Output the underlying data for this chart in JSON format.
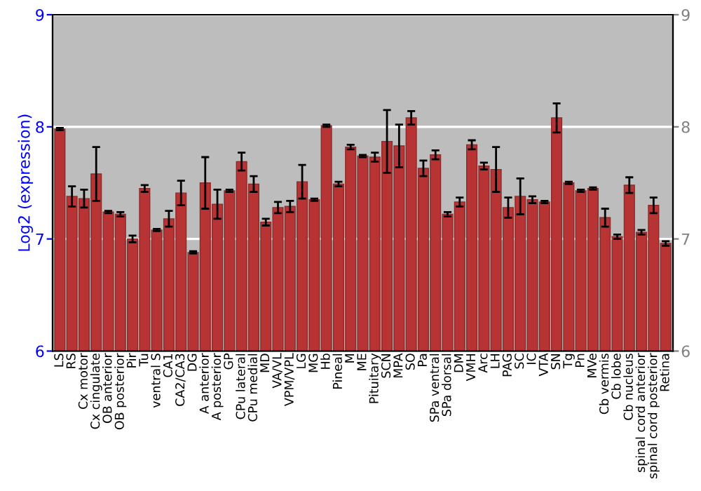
{
  "chart_data": {
    "type": "bar",
    "ylabel": "Log2 (expression)",
    "categories": [
      "LS",
      "RS",
      "Cx motor",
      "Cx cingulate",
      "OB anterior",
      "OB posterior",
      "Pir",
      "Tu",
      "ventral S",
      "CA1",
      "CA2/CA3",
      "DG",
      "A anterior",
      "A posterior",
      "GP",
      "CPu lateral",
      "CPu medial",
      "MD",
      "VA/VL",
      "VPM/VPL",
      "LG",
      "MG",
      "Hb",
      "Pineal",
      "M",
      "ME",
      "Pituitary",
      "SCN",
      "MPA",
      "SO",
      "Pa",
      "SPa ventral",
      "SPa dorsal",
      "DM",
      "VMH",
      "Arc",
      "LH",
      "PAG",
      "SC",
      "IC",
      "VTA",
      "SN",
      "Tg",
      "Pn",
      "MVe",
      "Cb vermis",
      "Cb lobe",
      "Cb nucleus",
      "spinal cord anterior",
      "spinal cord posterior",
      "Retina"
    ],
    "values": [
      7.98,
      7.38,
      7.36,
      7.58,
      7.24,
      7.22,
      7.0,
      7.45,
      7.08,
      7.18,
      7.41,
      6.88,
      7.5,
      7.31,
      7.43,
      7.69,
      7.49,
      7.15,
      7.28,
      7.29,
      7.51,
      7.35,
      8.01,
      7.49,
      7.82,
      7.74,
      7.73,
      7.87,
      7.83,
      8.08,
      7.63,
      7.75,
      7.22,
      7.33,
      7.84,
      7.65,
      7.62,
      7.28,
      7.38,
      7.35,
      7.33,
      8.08,
      7.5,
      7.43,
      7.45,
      7.19,
      7.02,
      7.48,
      7.06,
      7.3,
      6.96
    ],
    "errors": [
      0.01,
      0.09,
      0.08,
      0.24,
      0.01,
      0.02,
      0.03,
      0.03,
      0.01,
      0.07,
      0.11,
      0.01,
      0.23,
      0.13,
      0.01,
      0.08,
      0.07,
      0.03,
      0.05,
      0.05,
      0.15,
      0.01,
      0.01,
      0.02,
      0.02,
      0.01,
      0.04,
      0.28,
      0.19,
      0.06,
      0.07,
      0.04,
      0.02,
      0.04,
      0.04,
      0.03,
      0.2,
      0.09,
      0.16,
      0.03,
      0.01,
      0.13,
      0.01,
      0.01,
      0.01,
      0.08,
      0.02,
      0.07,
      0.02,
      0.07,
      0.02
    ],
    "color": "#b83434",
    "ylim": [
      6,
      9
    ],
    "yticks": [
      6,
      7,
      8,
      9
    ],
    "y2lim": [
      6,
      9
    ],
    "y2ticks": [
      6,
      7,
      8,
      9
    ],
    "grid": "y",
    "legend": false
  }
}
